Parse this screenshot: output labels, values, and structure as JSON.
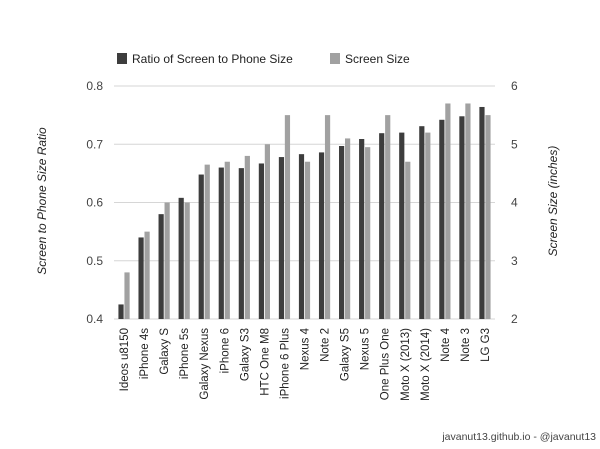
{
  "chart_data": {
    "type": "bar",
    "title": "",
    "categories": [
      "Ideos u8150",
      "iPhone 4s",
      "Galaxy S",
      "iPhone 5s",
      "Galaxy Nexus",
      "iPhone 6",
      "Galaxy S3",
      "HTC One M8",
      "iPhone 6 Plus",
      "Nexus 4",
      "Note 2",
      "Galaxy S5",
      "Nexus 5",
      "One Plus One",
      "Moto X (2013)",
      "Moto X (2014)",
      "Note 4",
      "Note 3",
      "LG G3"
    ],
    "series": [
      {
        "name": "Ratio of Screen to Phone Size",
        "axis": "left",
        "color": "#3d3d3d",
        "values": [
          0.425,
          0.54,
          0.58,
          0.608,
          0.648,
          0.66,
          0.659,
          0.667,
          0.678,
          0.683,
          0.686,
          0.697,
          0.709,
          0.719,
          0.72,
          0.731,
          0.742,
          0.748,
          0.764
        ]
      },
      {
        "name": "Screen Size",
        "axis": "right",
        "color": "#a1a1a1",
        "values": [
          2.8,
          3.5,
          4.0,
          4.0,
          4.65,
          4.7,
          4.8,
          5.0,
          5.5,
          4.7,
          5.5,
          5.1,
          4.95,
          5.5,
          4.7,
          5.2,
          5.7,
          5.7,
          5.5
        ]
      }
    ],
    "ylabel": "Screen to Phone Size Ratio",
    "ylim": [
      0.4,
      0.8
    ],
    "yticks": [
      "0.4",
      "0.5",
      "0.6",
      "0.7",
      "0.8"
    ],
    "y2label": "Screen Size (inches)",
    "y2lim": [
      2,
      6
    ],
    "y2ticks": [
      "2",
      "3",
      "4",
      "5",
      "6"
    ],
    "grid": true,
    "legend_position": "top-left"
  },
  "credit": "javanut13.github.io - @javanut13"
}
